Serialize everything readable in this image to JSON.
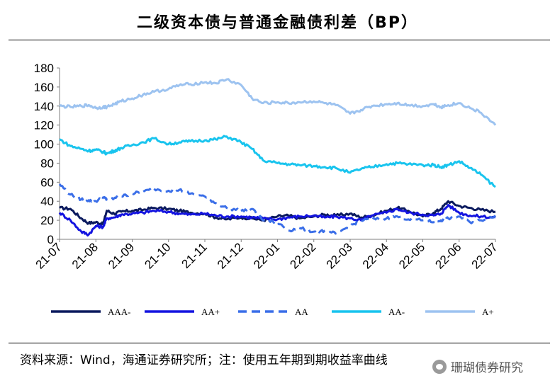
{
  "title": "二级资本债与普通金融债利差（BP）",
  "source": "资料来源：Wind，海通证券研究所；注：使用五年期到期收益率曲线",
  "watermark": "珊瑚债券研究",
  "chart_data": {
    "type": "line",
    "title": "二级资本债与普通金融债利差（BP）",
    "xlabel": "",
    "ylabel": "",
    "ylim": [
      0,
      180
    ],
    "yticks": [
      0,
      20,
      40,
      60,
      80,
      100,
      120,
      140,
      160,
      180
    ],
    "xticks": [
      "21-07",
      "21-08",
      "21-09",
      "21-10",
      "21-11",
      "21-12",
      "22-01",
      "22-02",
      "22-03",
      "22-04",
      "22-05",
      "22-06",
      "22-07"
    ],
    "grid": false,
    "legend_position": "bottom",
    "series": [
      {
        "name": "AAA-",
        "color": "#0b1a5e",
        "style": "solid",
        "x": [
          0,
          0.3,
          0.6,
          0.8,
          1.0,
          1.2,
          1.3,
          1.5,
          1.7,
          2.0,
          2.3,
          2.6,
          3.0,
          3.3,
          3.6,
          4.0,
          4.3,
          4.6,
          5.0,
          5.3,
          5.6,
          6.0,
          6.3,
          6.6,
          7.0,
          7.3,
          7.6,
          8.0,
          8.3,
          8.6,
          9.0,
          9.3,
          9.6,
          10.0,
          10.3,
          10.5,
          10.7,
          11.0,
          11.3,
          11.6,
          12.0
        ],
        "values": [
          33,
          32,
          22,
          17,
          18,
          16,
          30,
          27,
          29,
          30,
          31,
          33,
          32,
          30,
          28,
          27,
          23,
          21,
          23,
          22,
          20,
          24,
          25,
          22,
          24,
          26,
          25,
          27,
          23,
          25,
          30,
          33,
          30,
          24,
          28,
          32,
          40,
          35,
          33,
          31,
          29
        ]
      },
      {
        "name": "AA+",
        "color": "#1414e0",
        "style": "solid",
        "x": [
          0,
          0.3,
          0.6,
          0.8,
          1.0,
          1.2,
          1.3,
          1.5,
          1.7,
          2.0,
          2.3,
          2.6,
          3.0,
          3.3,
          3.6,
          4.0,
          4.3,
          4.6,
          5.0,
          5.3,
          5.6,
          6.0,
          6.3,
          6.6,
          7.0,
          7.3,
          7.6,
          8.0,
          8.3,
          8.6,
          9.0,
          9.3,
          9.6,
          10.0,
          10.3,
          10.5,
          10.7,
          11.0,
          11.3,
          11.6,
          12.0
        ],
        "values": [
          28,
          20,
          8,
          5,
          14,
          13,
          22,
          23,
          26,
          27,
          28,
          30,
          29,
          27,
          26,
          27,
          25,
          24,
          24,
          23,
          22,
          21,
          23,
          24,
          25,
          23,
          24,
          22,
          20,
          25,
          28,
          32,
          28,
          26,
          25,
          27,
          36,
          28,
          25,
          24,
          23
        ]
      },
      {
        "name": "AA",
        "color": "#3a6ee8",
        "style": "dashed",
        "x": [
          0,
          0.3,
          0.6,
          0.8,
          1.0,
          1.2,
          1.3,
          1.5,
          1.7,
          2.0,
          2.3,
          2.6,
          3.0,
          3.3,
          3.6,
          4.0,
          4.3,
          4.6,
          5.0,
          5.3,
          5.6,
          6.0,
          6.3,
          6.6,
          7.0,
          7.3,
          7.6,
          8.0,
          8.3,
          8.6,
          9.0,
          9.3,
          9.6,
          10.0,
          10.3,
          10.5,
          10.7,
          11.0,
          11.3,
          11.6,
          12.0
        ],
        "values": [
          58,
          47,
          42,
          41,
          40,
          44,
          42,
          43,
          45,
          48,
          50,
          53,
          51,
          52,
          48,
          45,
          38,
          33,
          30,
          32,
          20,
          18,
          9,
          12,
          8,
          9,
          6,
          14,
          20,
          21,
          22,
          24,
          21,
          20,
          18,
          20,
          22,
          24,
          18,
          20,
          25
        ]
      },
      {
        "name": "AA-",
        "color": "#19c4ee",
        "style": "solid",
        "x": [
          0,
          0.3,
          0.6,
          0.8,
          1.0,
          1.2,
          1.3,
          1.5,
          1.7,
          2.0,
          2.3,
          2.6,
          3.0,
          3.3,
          3.6,
          4.0,
          4.3,
          4.6,
          5.0,
          5.3,
          5.6,
          6.0,
          6.3,
          6.6,
          7.0,
          7.3,
          7.6,
          8.0,
          8.3,
          8.6,
          9.0,
          9.3,
          9.6,
          10.0,
          10.3,
          10.5,
          10.7,
          11.0,
          11.3,
          11.6,
          12.0
        ],
        "values": [
          105,
          98,
          95,
          93,
          94,
          92,
          90,
          93,
          96,
          99,
          102,
          106,
          100,
          102,
          103,
          104,
          105,
          108,
          102,
          95,
          83,
          80,
          79,
          78,
          77,
          76,
          75,
          70,
          74,
          76,
          79,
          80,
          79,
          78,
          78,
          76,
          78,
          82,
          75,
          68,
          55
        ]
      },
      {
        "name": "A+",
        "color": "#9dc3f0",
        "style": "solid",
        "x": [
          0,
          0.3,
          0.6,
          0.8,
          1.0,
          1.2,
          1.3,
          1.5,
          1.7,
          2.0,
          2.3,
          2.6,
          3.0,
          3.3,
          3.6,
          4.0,
          4.3,
          4.6,
          5.0,
          5.3,
          5.6,
          6.0,
          6.3,
          6.6,
          7.0,
          7.3,
          7.6,
          8.0,
          8.3,
          8.6,
          9.0,
          9.3,
          9.6,
          10.0,
          10.3,
          10.5,
          10.7,
          11.0,
          11.3,
          11.6,
          12.0
        ],
        "values": [
          140,
          139,
          140,
          141,
          138,
          139,
          139,
          142,
          145,
          148,
          152,
          155,
          158,
          162,
          163,
          165,
          164,
          168,
          162,
          148,
          143,
          144,
          143,
          144,
          145,
          143,
          141,
          132,
          136,
          140,
          142,
          143,
          141,
          140,
          142,
          139,
          141,
          143,
          138,
          133,
          120
        ]
      }
    ]
  }
}
